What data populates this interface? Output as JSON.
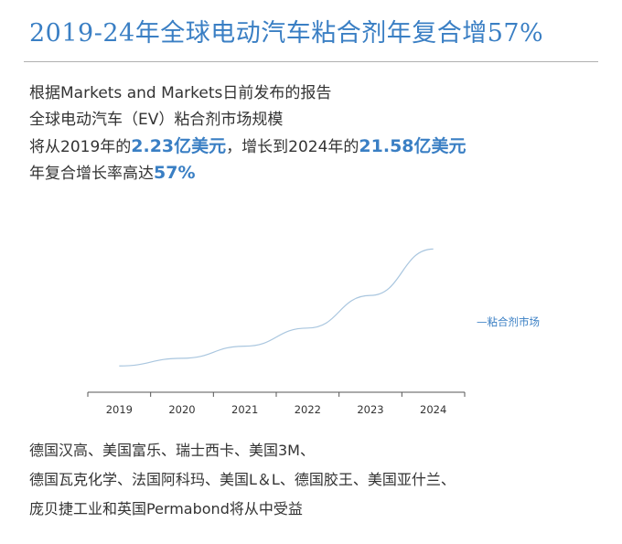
{
  "headline": "2019-24年全球电动汽车粘合剂年复合增57%",
  "intro": {
    "line1": "根据Markets and Markets日前发布的报告",
    "line2": "全球电动汽车（EV）粘合剂市场规模",
    "line3_prefix": "将从2019年的",
    "line3_value1": "2.23亿美元",
    "line3_mid": "，增长到2024年的",
    "line3_value2": "21.58亿美元",
    "line4_prefix": "年复合增长率高达",
    "line4_value": "57%"
  },
  "chart_data": {
    "type": "line",
    "categories": [
      "2019",
      "2020",
      "2021",
      "2022",
      "2023",
      "2024"
    ],
    "series": [
      {
        "name": "粘合剂市场",
        "values": [
          2.23,
          3.5,
          5.5,
          8.5,
          13.9,
          21.58
        ]
      }
    ],
    "legend_label": "—粘合剂市场",
    "legend_position": "right",
    "ylim": [
      0,
      23
    ],
    "grid": false,
    "line_color": "#a9c6df"
  },
  "beneficiaries": {
    "line1": "德国汉高、美国富乐、瑞士西卡、美国3M、",
    "line2": "德国瓦克化学、法国阿科玛、美国L＆L、德国胶王、美国亚什兰、",
    "line3": "庞贝捷工业和英国Permabond将从中受益"
  },
  "colors": {
    "accent": "#3a7fc4",
    "text": "#333333",
    "rule": "#b0b0b0"
  }
}
